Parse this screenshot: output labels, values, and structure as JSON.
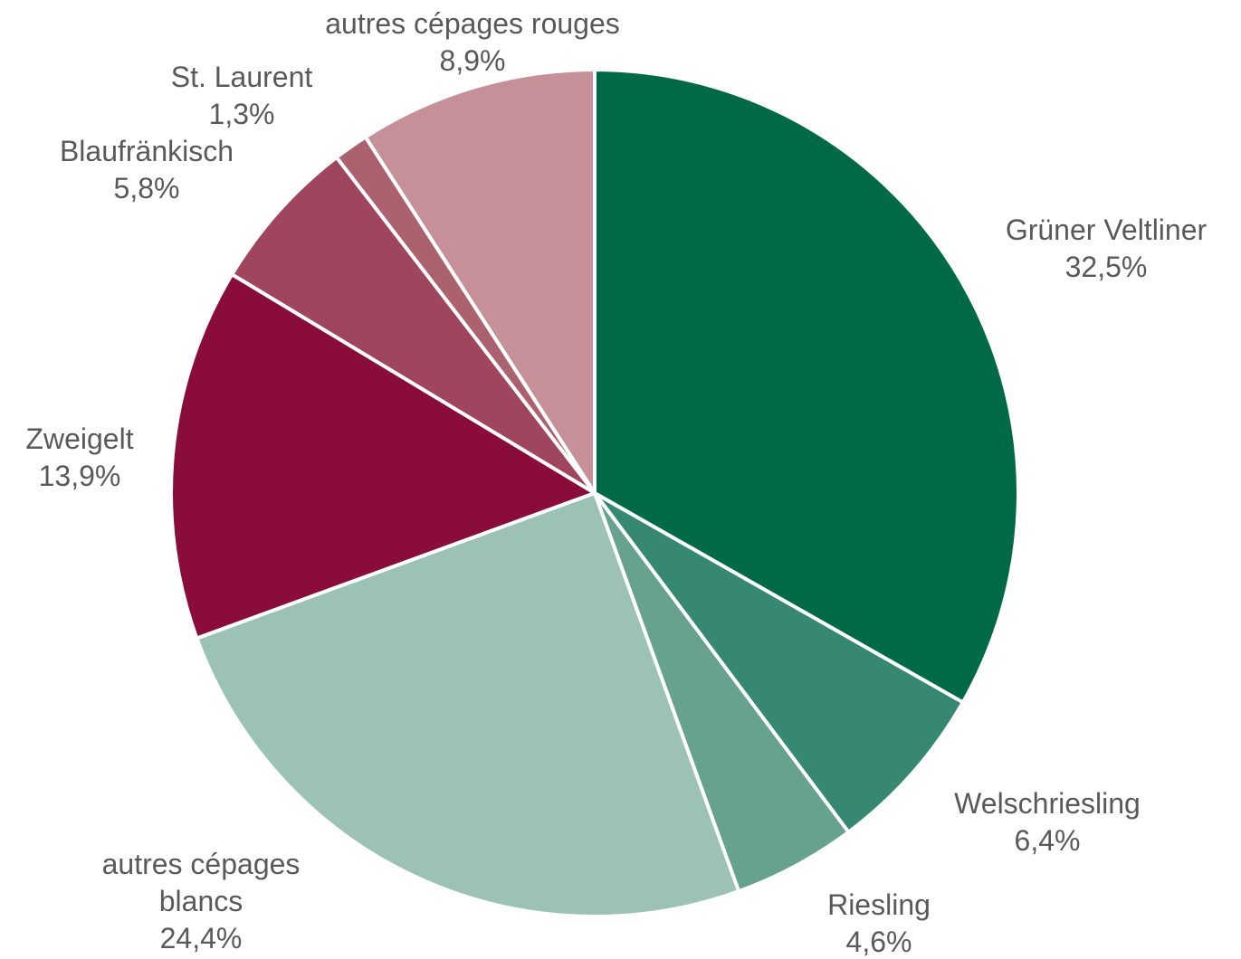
{
  "chart_data": {
    "type": "pie",
    "title": "",
    "start_angle_deg": 0,
    "direction": "clockwise",
    "slices": [
      {
        "label_lines": [
          "Grüner Veltliner"
        ],
        "value": 32.5,
        "value_label": "32,5%",
        "color": "#006a47"
      },
      {
        "label_lines": [
          "Welschriesling"
        ],
        "value": 6.4,
        "value_label": "6,4%",
        "color": "#368872"
      },
      {
        "label_lines": [
          "Riesling"
        ],
        "value": 4.6,
        "value_label": "4,6%",
        "color": "#66a28d"
      },
      {
        "label_lines": [
          "autres cépages",
          "blancs"
        ],
        "value": 24.4,
        "value_label": "24,4%",
        "color": "#9bc2b5"
      },
      {
        "label_lines": [
          "Zweigelt"
        ],
        "value": 13.9,
        "value_label": "13,9%",
        "color": "#8a0c3b"
      },
      {
        "label_lines": [
          "Blaufränkisch"
        ],
        "value": 5.8,
        "value_label": "5,8%",
        "color": "#a0455e"
      },
      {
        "label_lines": [
          "St. Laurent"
        ],
        "value": 1.3,
        "value_label": "1,3%",
        "color": "#ac626e"
      },
      {
        "label_lines": [
          "autres cépages rouges"
        ],
        "value": 8.9,
        "value_label": "8,9%",
        "color": "#c69099"
      }
    ]
  }
}
